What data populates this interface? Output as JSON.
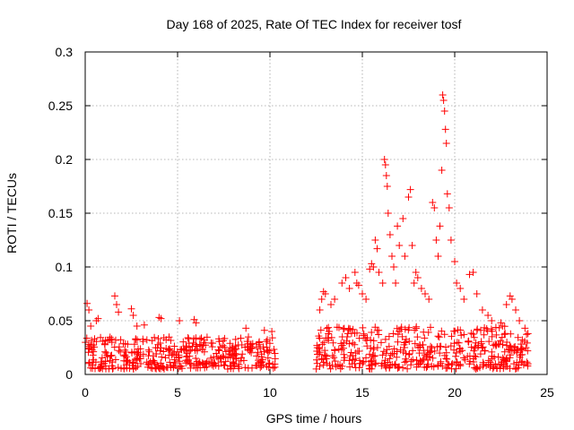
{
  "chart_data": {
    "type": "scatter",
    "title": "Day 168 of 2025, Rate Of TEC Index for receiver tosf",
    "xlabel": "GPS time / hours",
    "ylabel": "ROTI / TECUs",
    "xlim": [
      0,
      25
    ],
    "ylim": [
      0,
      0.3
    ],
    "xticks": [
      0,
      5,
      10,
      15,
      20,
      25
    ],
    "yticks": [
      0,
      0.05,
      0.1,
      0.15,
      0.2,
      0.25,
      0.3
    ],
    "xtick_labels": [
      "0",
      "5",
      "10",
      "15",
      "20",
      "25"
    ],
    "ytick_labels": [
      "0",
      "0.05",
      "0.1",
      "0.15",
      "0.2",
      "0.25",
      "0.3"
    ],
    "grid": true,
    "marker": "+",
    "series_color": "#ff0000",
    "series": [
      {
        "name": "ROTI",
        "base_band": [
          {
            "x_start": 0.0,
            "x_end": 10.3,
            "y_low": 0.005,
            "y_high": 0.035
          },
          {
            "x_start": 12.5,
            "x_end": 24.0,
            "y_low": 0.005,
            "y_high": 0.045
          }
        ],
        "points": [
          [
            0.1,
            0.066
          ],
          [
            0.2,
            0.06
          ],
          [
            0.3,
            0.045
          ],
          [
            0.6,
            0.05
          ],
          [
            0.7,
            0.052
          ],
          [
            1.6,
            0.073
          ],
          [
            1.7,
            0.065
          ],
          [
            1.8,
            0.058
          ],
          [
            2.5,
            0.061
          ],
          [
            2.6,
            0.055
          ],
          [
            2.8,
            0.045
          ],
          [
            3.2,
            0.046
          ],
          [
            4.0,
            0.053
          ],
          [
            4.1,
            0.052
          ],
          [
            5.1,
            0.05
          ],
          [
            5.9,
            0.051
          ],
          [
            6.0,
            0.048
          ],
          [
            8.7,
            0.043
          ],
          [
            9.7,
            0.041
          ],
          [
            10.1,
            0.04
          ],
          [
            12.7,
            0.06
          ],
          [
            12.8,
            0.07
          ],
          [
            12.9,
            0.077
          ],
          [
            13.0,
            0.075
          ],
          [
            13.3,
            0.065
          ],
          [
            13.5,
            0.07
          ],
          [
            13.9,
            0.085
          ],
          [
            14.1,
            0.09
          ],
          [
            14.3,
            0.08
          ],
          [
            14.6,
            0.095
          ],
          [
            14.7,
            0.085
          ],
          [
            14.8,
            0.083
          ],
          [
            15.0,
            0.075
          ],
          [
            15.2,
            0.07
          ],
          [
            15.4,
            0.098
          ],
          [
            15.5,
            0.103
          ],
          [
            15.6,
            0.1
          ],
          [
            15.7,
            0.125
          ],
          [
            15.8,
            0.117
          ],
          [
            15.9,
            0.095
          ],
          [
            16.1,
            0.085
          ],
          [
            16.2,
            0.2
          ],
          [
            16.25,
            0.195
          ],
          [
            16.3,
            0.185
          ],
          [
            16.35,
            0.175
          ],
          [
            16.4,
            0.15
          ],
          [
            16.5,
            0.13
          ],
          [
            16.6,
            0.11
          ],
          [
            16.7,
            0.1
          ],
          [
            16.8,
            0.085
          ],
          [
            16.9,
            0.138
          ],
          [
            17.0,
            0.12
          ],
          [
            17.2,
            0.145
          ],
          [
            17.3,
            0.11
          ],
          [
            17.5,
            0.165
          ],
          [
            17.6,
            0.172
          ],
          [
            17.7,
            0.12
          ],
          [
            17.8,
            0.085
          ],
          [
            17.9,
            0.095
          ],
          [
            18.0,
            0.09
          ],
          [
            18.2,
            0.08
          ],
          [
            18.4,
            0.075
          ],
          [
            18.6,
            0.07
          ],
          [
            18.8,
            0.16
          ],
          [
            18.9,
            0.155
          ],
          [
            19.0,
            0.125
          ],
          [
            19.1,
            0.11
          ],
          [
            19.2,
            0.138
          ],
          [
            19.3,
            0.19
          ],
          [
            19.35,
            0.26
          ],
          [
            19.4,
            0.255
          ],
          [
            19.45,
            0.245
          ],
          [
            19.5,
            0.228
          ],
          [
            19.55,
            0.215
          ],
          [
            19.6,
            0.168
          ],
          [
            19.7,
            0.155
          ],
          [
            19.8,
            0.125
          ],
          [
            20.0,
            0.105
          ],
          [
            20.1,
            0.085
          ],
          [
            20.3,
            0.08
          ],
          [
            20.5,
            0.07
          ],
          [
            20.8,
            0.093
          ],
          [
            21.0,
            0.095
          ],
          [
            21.2,
            0.075
          ],
          [
            21.5,
            0.06
          ],
          [
            21.8,
            0.055
          ],
          [
            22.0,
            0.05
          ],
          [
            22.5,
            0.048
          ],
          [
            22.8,
            0.065
          ],
          [
            23.0,
            0.073
          ],
          [
            23.1,
            0.07
          ],
          [
            23.3,
            0.06
          ],
          [
            23.5,
            0.05
          ],
          [
            23.8,
            0.043
          ]
        ]
      }
    ]
  }
}
